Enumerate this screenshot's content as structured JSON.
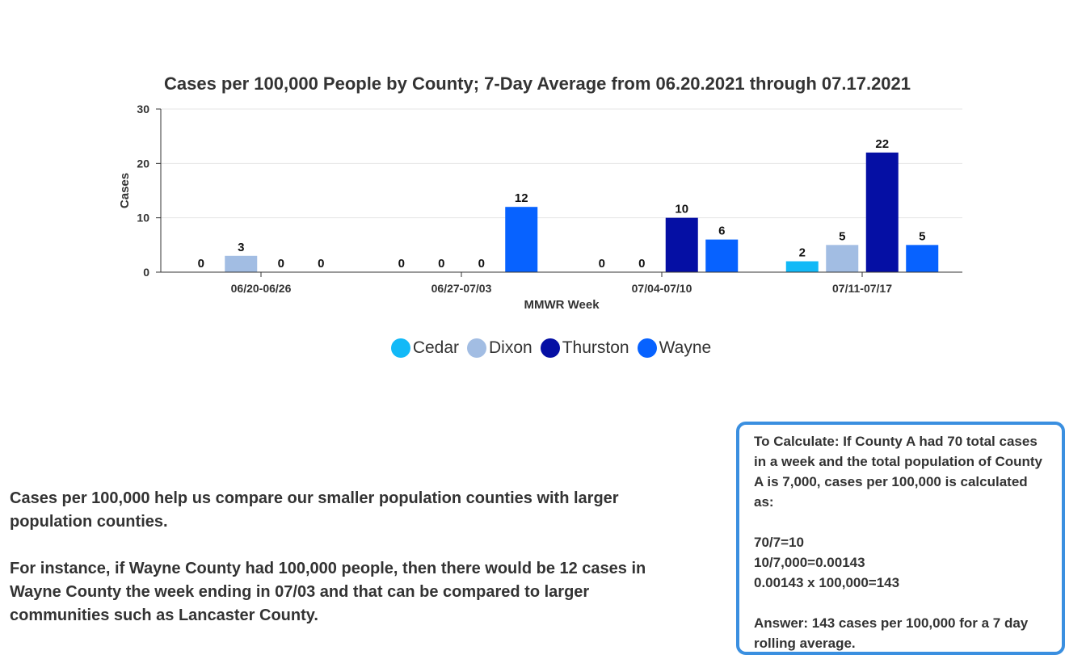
{
  "chart_data": {
    "type": "bar",
    "title": "Cases per 100,000 People by County; 7-Day Average from 06.20.2021 through 07.17.2021",
    "xlabel": "MMWR Week",
    "ylabel": "Cases",
    "ylim": [
      0,
      30
    ],
    "yticks": [
      "0",
      "10",
      "20",
      "30"
    ],
    "grid": true,
    "legend_position": "bottom",
    "categories": [
      "06/20-06/26",
      "06/27-07/03",
      "07/04-07/10",
      "07/11-07/17"
    ],
    "series": [
      {
        "name": "Cedar",
        "color": "#12b9f7",
        "values": [
          0,
          0,
          0,
          2
        ]
      },
      {
        "name": "Dixon",
        "color": "#a2bde3",
        "values": [
          3,
          0,
          0,
          5
        ]
      },
      {
        "name": "Thurston",
        "color": "#050fa4",
        "values": [
          0,
          0,
          10,
          22
        ]
      },
      {
        "name": "Wayne",
        "color": "#0762ff",
        "values": [
          0,
          12,
          6,
          5
        ]
      }
    ]
  },
  "explanation": {
    "paragraph1": "Cases per 100,000 help us compare our smaller population counties with larger population counties.",
    "paragraph2": "For instance, if Wayne County had 100,000 people, then there would be 12 cases in Wayne County the week ending in 07/03 and that can be compared to larger communities such as Lancaster County."
  },
  "calculation": {
    "intro": "To Calculate: If County A had 70 total cases in a week and the total population of County A is 7,000, cases per 100,000 is calculated as:",
    "step1": "70/7=10",
    "step2": "10/7,000=0.00143",
    "step3": "0.00143 x 100,000=143",
    "answer": "Answer: 143 cases per 100,000 for a 7 day rolling average."
  },
  "colors": {
    "accent_border": "#3a8fe0",
    "gridline": "#e6e6e6",
    "axis": "#333333"
  }
}
